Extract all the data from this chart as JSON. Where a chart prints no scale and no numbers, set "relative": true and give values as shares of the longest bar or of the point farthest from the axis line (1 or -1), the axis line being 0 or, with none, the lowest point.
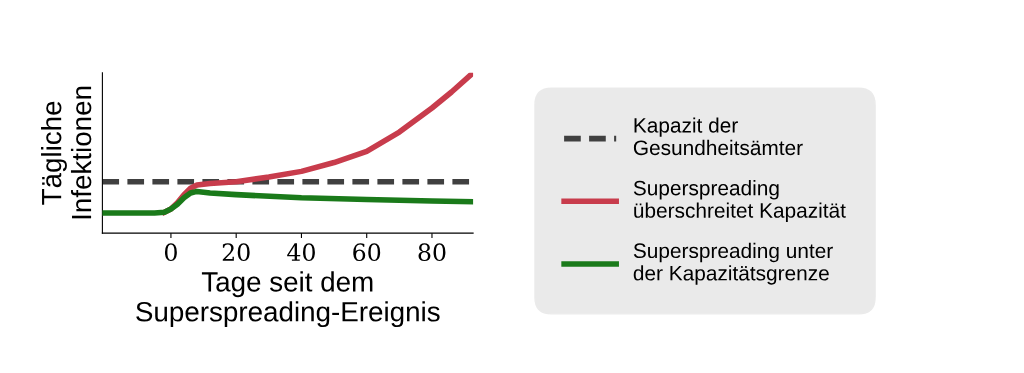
{
  "chart_data": {
    "type": "line",
    "relative": true,
    "xlabel": "Tage seit dem\nSuperspreading-Ereignis",
    "ylabel": "Tägliche\nInfektionen",
    "xlim": [
      -21,
      92.6
    ],
    "xticks": [
      0,
      20,
      40,
      60,
      80
    ],
    "legend": "right",
    "grid": false,
    "marker": "none",
    "series": [
      {
        "name": "Kapazit der\nGesundheitsämter",
        "color": "#404040",
        "line_style": "dashed",
        "x": [
          -21,
          92.6
        ],
        "values": [
          0.32,
          0.32
        ]
      },
      {
        "name": "Superspreading\nüberschreitet Kapazität",
        "color": "#c83c4c",
        "line_style": "solid",
        "x": [
          -2,
          0,
          2,
          4,
          6,
          8,
          12,
          20,
          30,
          40,
          50,
          60,
          70,
          80,
          86,
          92.6
        ],
        "values": [
          0.13,
          0.15,
          0.19,
          0.24,
          0.28,
          0.3,
          0.31,
          0.32,
          0.35,
          0.385,
          0.44,
          0.51,
          0.63,
          0.78,
          0.88,
          1.0
        ]
      },
      {
        "name": "Superspreading unter\nder Kapazitätsgrenze",
        "color": "#1a7a1a",
        "line_style": "solid",
        "x": [
          -21,
          -5,
          -2,
          0,
          2,
          4,
          6,
          8,
          12,
          20,
          40,
          60,
          80,
          92.6
        ],
        "values": [
          0.126,
          0.126,
          0.13,
          0.15,
          0.18,
          0.22,
          0.25,
          0.26,
          0.25,
          0.24,
          0.22,
          0.21,
          0.2,
          0.196
        ]
      }
    ]
  }
}
